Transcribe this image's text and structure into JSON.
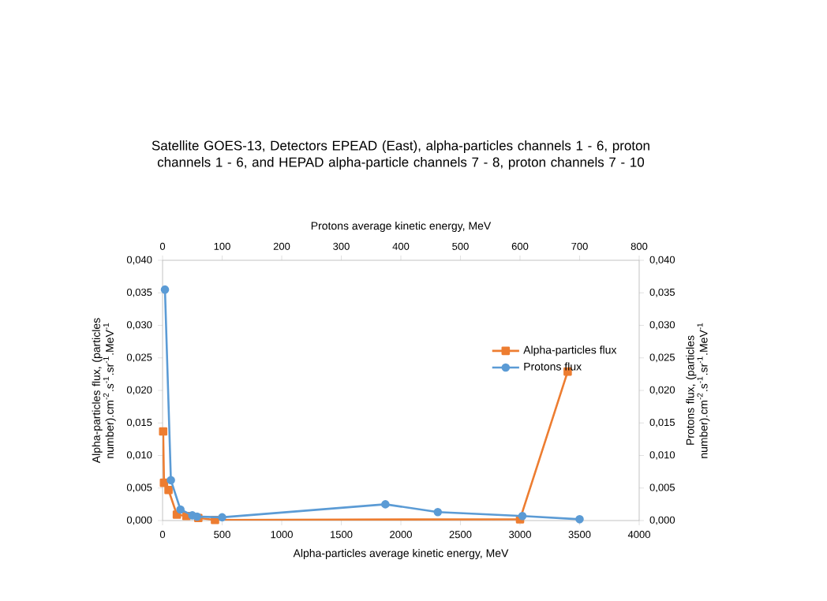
{
  "chart_data": {
    "type": "line",
    "title": "Satellite GOES-13, Detectors EPEAD (East), alpha-particles channels 1 - 6, proton channels 1 - 6, and HEPAD alpha-particle channels 7 - 8, proton channels 7 - 10",
    "xlabel": "Alpha-particles average kinetic energy, MeV",
    "x2label": "Protons average kinetic energy, MeV",
    "ylabel": "Alpha-particles flux, (particles number).cm$^{-2}$.s$^{-1}$.sr$^{-1}$.MeV$^{-1}$",
    "y2label": "Protons flux, (particles number).cm$^{-2}$.s$^{-1}$.sr$^{-1}$.MeV$^{-1}$",
    "xlim": [
      0,
      4000
    ],
    "xticks": [
      0,
      500,
      1000,
      1500,
      2000,
      2500,
      3000,
      3500,
      4000
    ],
    "x2lim": [
      0,
      800
    ],
    "x2ticks": [
      0,
      100,
      200,
      300,
      400,
      500,
      600,
      700,
      800
    ],
    "ylim": [
      0,
      0.04
    ],
    "yticks": [
      {
        "value": 0,
        "label": "0,000"
      },
      {
        "value": 0.005,
        "label": "0,005"
      },
      {
        "value": 0.01,
        "label": "0,010"
      },
      {
        "value": 0.015,
        "label": "0,015"
      },
      {
        "value": 0.02,
        "label": "0,020"
      },
      {
        "value": 0.025,
        "label": "0,025"
      },
      {
        "value": 0.03,
        "label": "0,030"
      },
      {
        "value": 0.035,
        "label": "0,035"
      },
      {
        "value": 0.04,
        "label": "0,040"
      }
    ],
    "y2lim": [
      0,
      0.04
    ],
    "y2ticks": [
      {
        "value": 0,
        "label": "0,000"
      },
      {
        "value": 0.005,
        "label": "0,005"
      },
      {
        "value": 0.01,
        "label": "0,010"
      },
      {
        "value": 0.015,
        "label": "0,015"
      },
      {
        "value": 0.02,
        "label": "0,020"
      },
      {
        "value": 0.025,
        "label": "0,025"
      },
      {
        "value": 0.03,
        "label": "0,030"
      },
      {
        "value": 0.035,
        "label": "0,035"
      },
      {
        "value": 0.04,
        "label": "0,040"
      }
    ],
    "grid": false,
    "legend": "right",
    "line_style": "solid",
    "series": [
      {
        "name": "Alpha-particles flux",
        "color": "#ed7d31",
        "marker": "square",
        "x": [
          5,
          12,
          50,
          120,
          200,
          300,
          440,
          3000,
          3400
        ],
        "values": [
          0.0137,
          0.0058,
          0.0047,
          0.0009,
          0.0007,
          0.0004,
          0.0001,
          0.0002,
          0.0229
        ]
      },
      {
        "name": "Protons flux",
        "color": "#5b9bd5",
        "marker": "circle",
        "axis": "x2",
        "x": [
          4,
          14,
          30,
          50,
          58,
          100,
          374,
          462,
          604,
          700
        ],
        "values": [
          0.0355,
          0.0062,
          0.0017,
          0.0008,
          0.0006,
          0.0005,
          0.0025,
          0.0013,
          0.0007,
          0.0002
        ]
      }
    ]
  }
}
